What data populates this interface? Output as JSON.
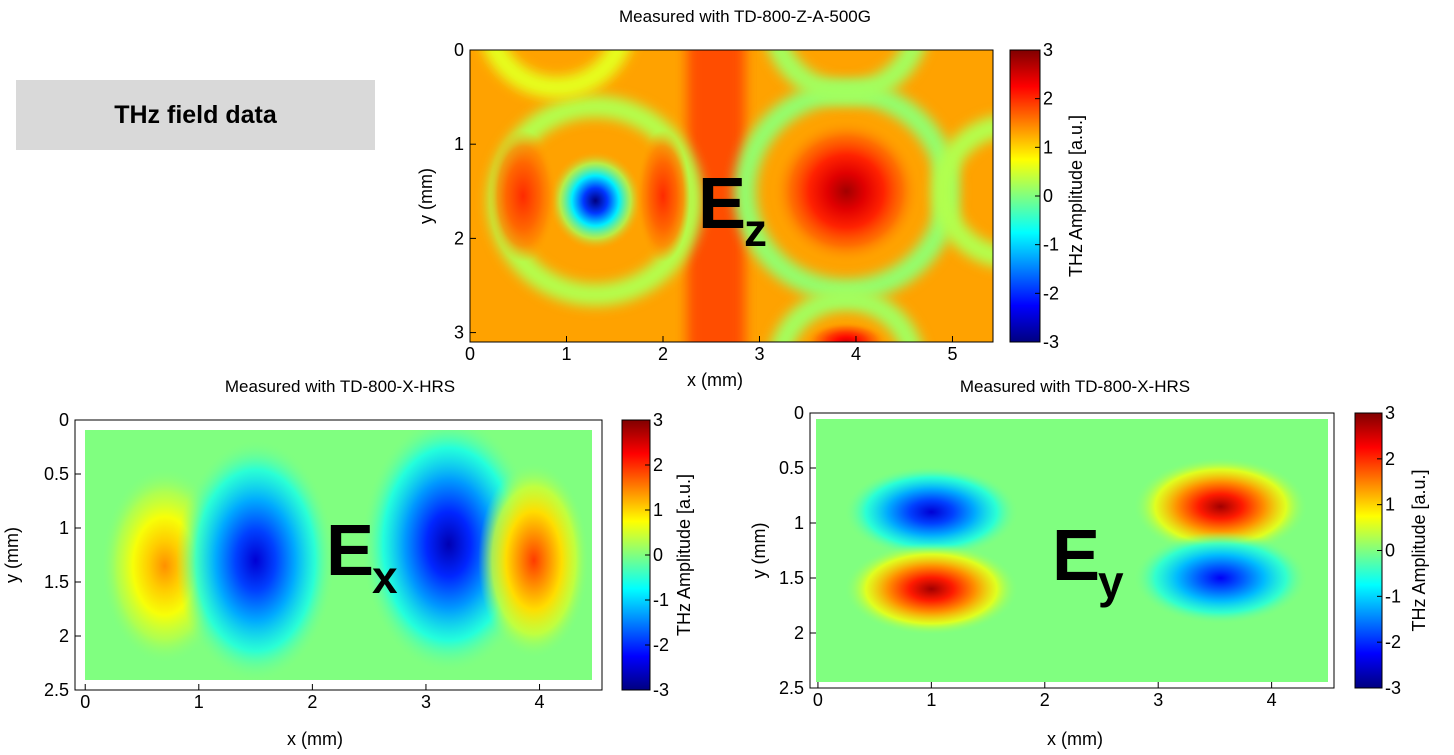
{
  "header": {
    "title": "THz field data"
  },
  "chart_data": [
    {
      "type": "heatmap",
      "title": "Measured with TD-800-Z-A-500G",
      "x_label": "x (mm)",
      "y_label": "y (mm)",
      "xlim": [
        0,
        5.42
      ],
      "ylim": [
        0,
        3.1
      ],
      "xticks": [
        0,
        1,
        2,
        3,
        4,
        5
      ],
      "yticks": [
        0,
        1,
        2,
        3
      ],
      "y_reversed": true,
      "colormap": "jet",
      "background": 1.3,
      "stripe": {
        "x": [
          2.25,
          2.85
        ],
        "value": 1.8
      },
      "rings": [
        {
          "x": 1.3,
          "y": 1.6,
          "r": 1.0,
          "value": 0.3
        },
        {
          "x": 3.9,
          "y": 1.5,
          "r": 1.05,
          "value": 0.1
        },
        {
          "x": 3.9,
          "y": -0.3,
          "r": 0.75,
          "value": 0.2
        },
        {
          "x": 3.9,
          "y": 3.35,
          "r": 0.7,
          "value": 0.2
        },
        {
          "x": 0.9,
          "y": -0.3,
          "r": 0.7,
          "value": 0.6
        },
        {
          "x": 5.6,
          "y": 1.5,
          "r": 0.7,
          "value": 0.3
        }
      ],
      "peaks": [
        {
          "x": 1.3,
          "y": 1.6,
          "rx": 0.35,
          "ry": 0.38,
          "value": -3
        },
        {
          "x": 3.9,
          "y": 1.5,
          "rx": 0.55,
          "ry": 0.55,
          "value": 2.8
        },
        {
          "x": 0.55,
          "y": 1.55,
          "rx": 0.25,
          "ry": 0.5,
          "value": 2.0
        },
        {
          "x": 2.0,
          "y": 1.55,
          "rx": 0.2,
          "ry": 0.5,
          "value": 2.0
        },
        {
          "x": 3.9,
          "y": 3.1,
          "rx": 0.3,
          "ry": 0.15,
          "value": 2.5
        }
      ],
      "colorbar": {
        "label": "THz Amplitude [a.u.]",
        "lim": [
          -3,
          3
        ],
        "ticks": [
          3,
          2,
          1,
          0,
          -1,
          -2,
          -3
        ]
      },
      "field_label": "E",
      "field_subscript": "z"
    },
    {
      "type": "heatmap",
      "title": "Measured with TD-800-X-HRS",
      "x_label": "x (mm)",
      "y_label": "y (mm)",
      "xlim": [
        -0.09,
        4.55
      ],
      "ylim": [
        0,
        2.5
      ],
      "xticks": [
        0,
        1,
        2,
        3,
        4
      ],
      "yticks": [
        0,
        0.5,
        1,
        1.5,
        2,
        2.5
      ],
      "y_reversed": true,
      "colormap": "jet",
      "background": 0,
      "peaks": [
        {
          "x": 0.7,
          "y": 1.35,
          "rx": 0.4,
          "ry": 0.65,
          "value": 1.4
        },
        {
          "x": 1.5,
          "y": 1.3,
          "rx": 0.5,
          "ry": 0.8,
          "value": -2.5
        },
        {
          "x": 3.2,
          "y": 1.15,
          "rx": 0.55,
          "ry": 0.85,
          "value": -2.7
        },
        {
          "x": 3.95,
          "y": 1.3,
          "rx": 0.35,
          "ry": 0.65,
          "value": 1.9
        }
      ],
      "colorbar": {
        "label": "THz Amplitude [a.u.]",
        "lim": [
          -3,
          3
        ],
        "ticks": [
          3,
          2,
          1,
          0,
          -1,
          -2,
          -3
        ]
      },
      "field_label": "E",
      "field_subscript": "x"
    },
    {
      "type": "heatmap",
      "title": "Measured with TD-800-X-HRS",
      "x_label": "x (mm)",
      "y_label": "y (mm)",
      "xlim": [
        -0.07,
        4.55
      ],
      "ylim": [
        0,
        2.5
      ],
      "xticks": [
        0,
        1,
        2,
        3,
        4
      ],
      "yticks": [
        0,
        0.5,
        1,
        1.5,
        2,
        2.5
      ],
      "y_reversed": true,
      "colormap": "jet",
      "background": 0,
      "peaks": [
        {
          "x": 1.0,
          "y": 0.9,
          "rx": 0.55,
          "ry": 0.3,
          "value": -2.5
        },
        {
          "x": 1.0,
          "y": 1.6,
          "rx": 0.55,
          "ry": 0.3,
          "value": 2.8
        },
        {
          "x": 3.55,
          "y": 0.85,
          "rx": 0.55,
          "ry": 0.32,
          "value": 2.8
        },
        {
          "x": 3.55,
          "y": 1.5,
          "rx": 0.55,
          "ry": 0.3,
          "value": -2.3
        }
      ],
      "colorbar": {
        "label": "THz Amplitude [a.u.]",
        "lim": [
          -3,
          3
        ],
        "ticks": [
          3,
          2,
          1,
          0,
          -1,
          -2,
          -3
        ]
      },
      "field_label": "E",
      "field_subscript": "y"
    }
  ]
}
